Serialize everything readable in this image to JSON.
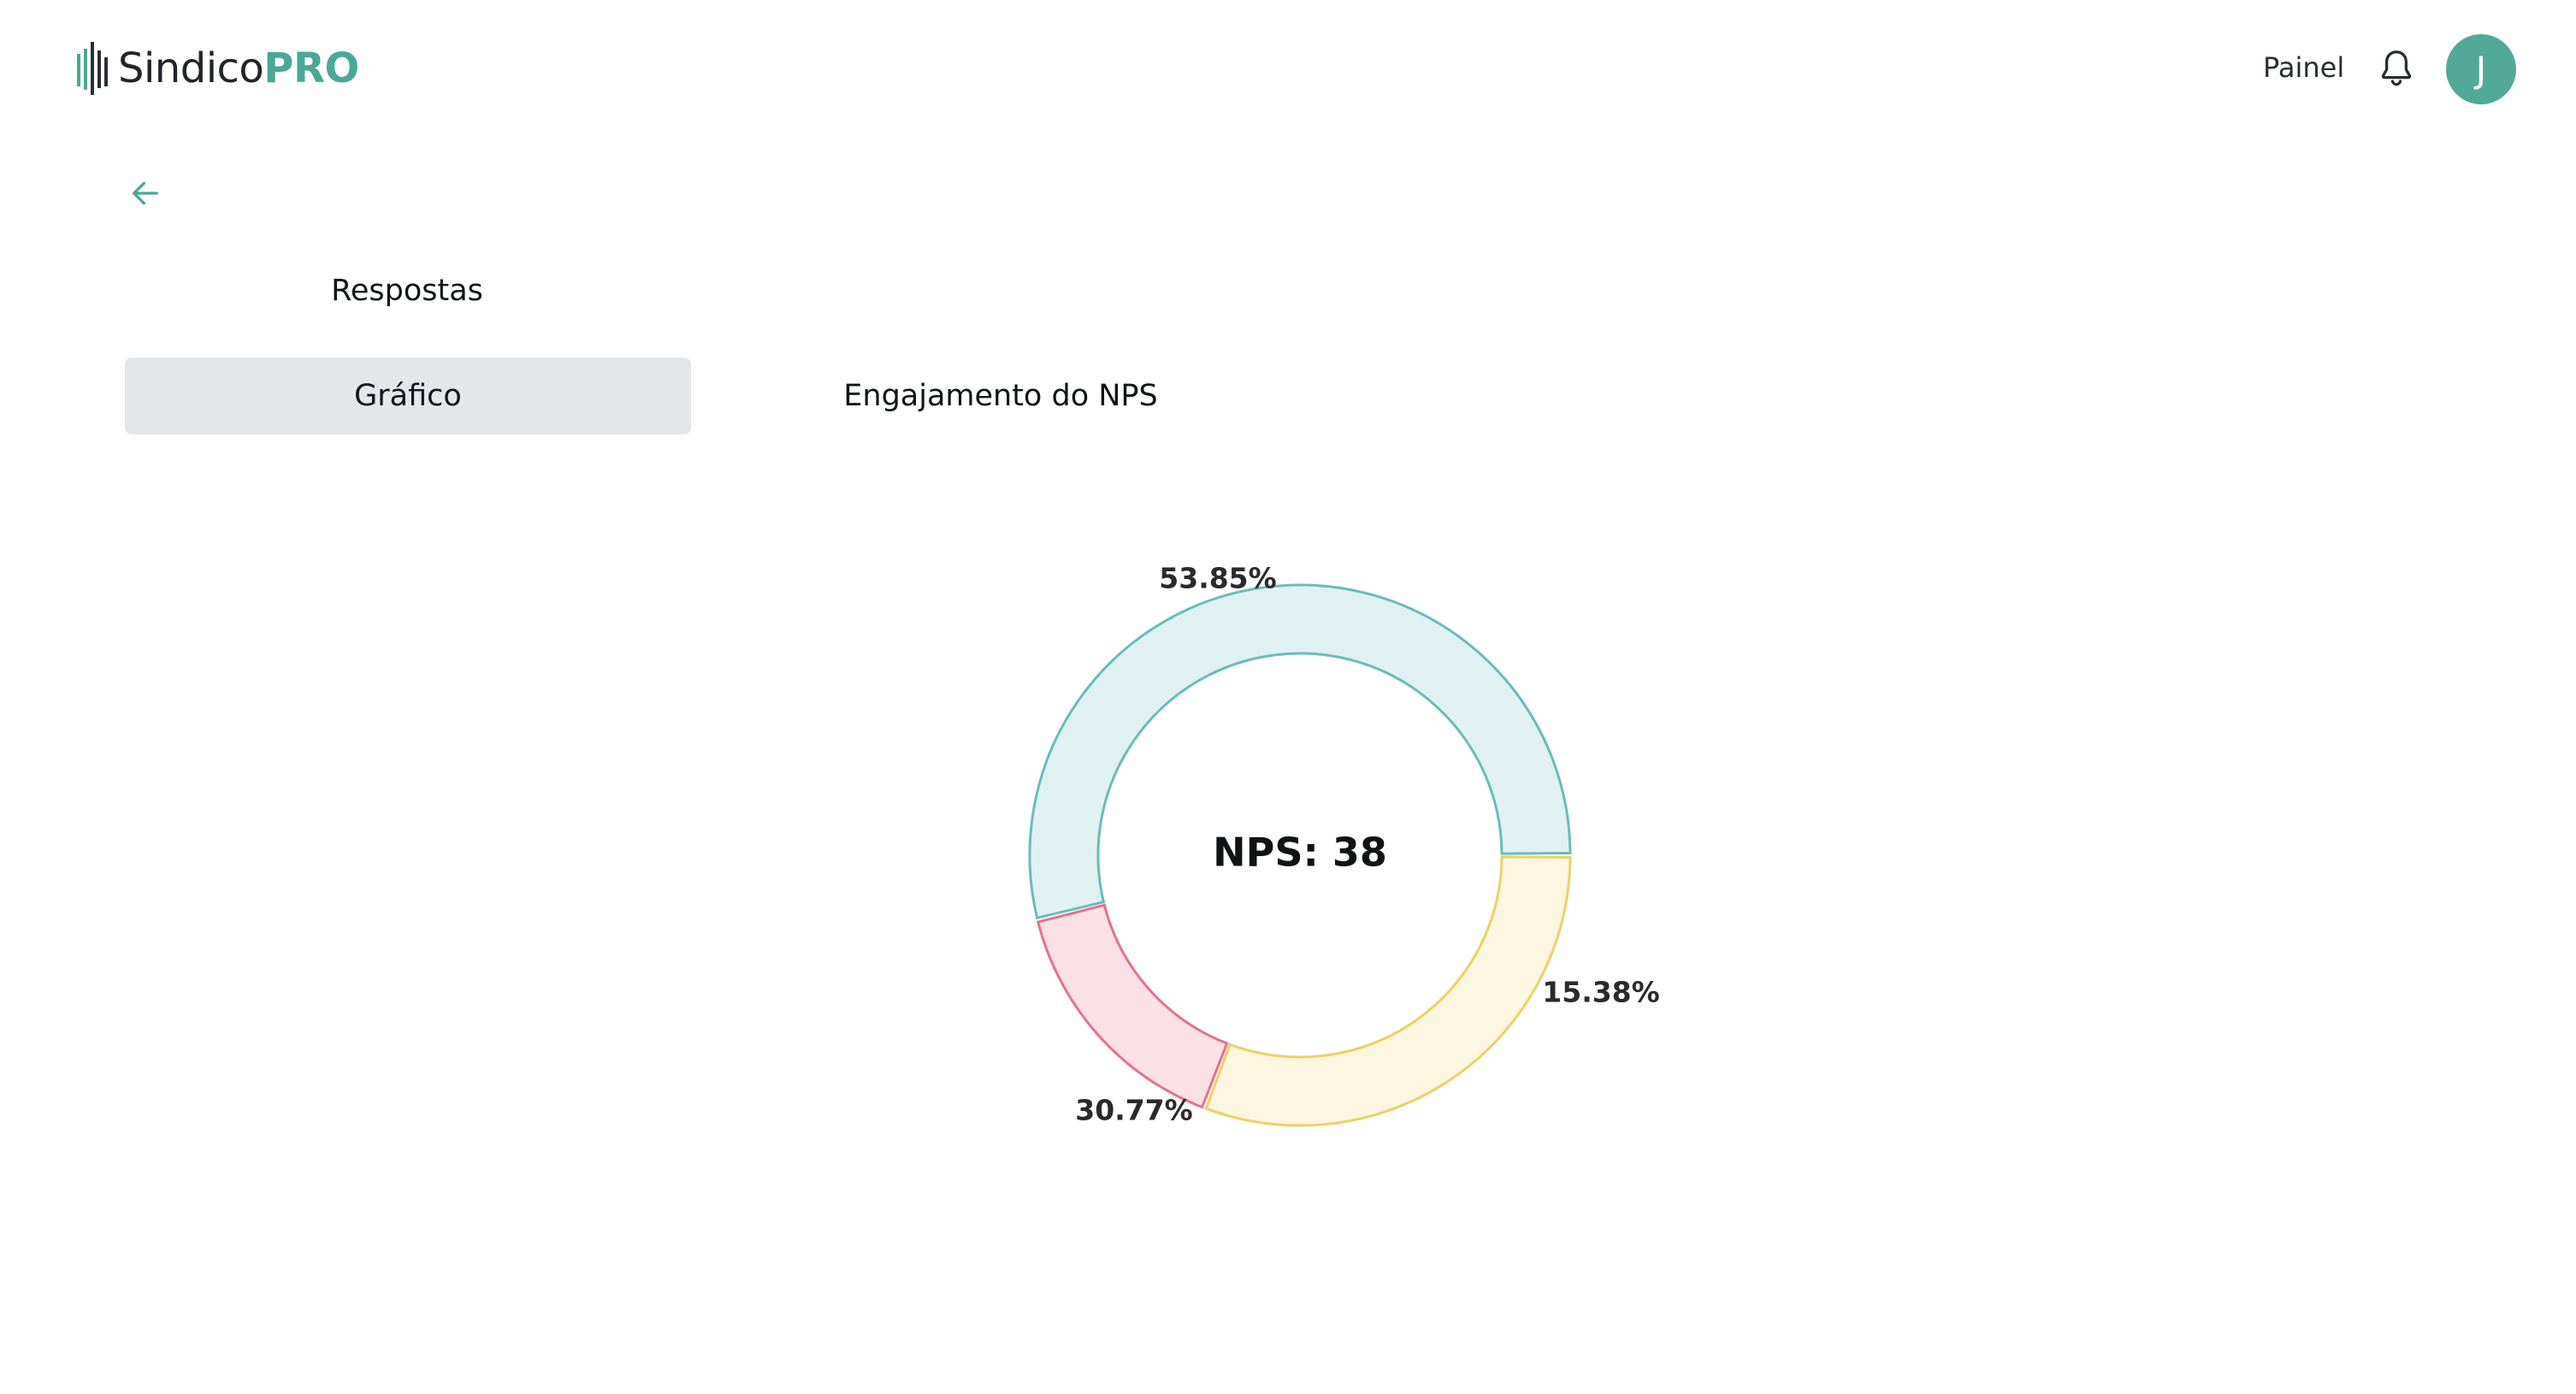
{
  "app": {
    "brand_part1": "Sindico",
    "brand_part2": "PRO",
    "brand_color": "#4aa896"
  },
  "header": {
    "nav_label": "Painel",
    "bell_icon": "bell-icon",
    "avatar_initial": "J",
    "avatar_color": "#52a998"
  },
  "back_icon": "arrow-left-icon",
  "section": {
    "title": "Respostas"
  },
  "tabs": [
    {
      "label": "Gráfico",
      "active": true
    },
    {
      "label": "Engajamento do NPS",
      "active": false
    }
  ],
  "chart_data": {
    "type": "pie",
    "center_label": "NPS: 38",
    "series": [
      {
        "value": 53.85,
        "label": "53.85%",
        "fill": "#e0f1f1",
        "stroke": "#69bcbc"
      },
      {
        "value": 15.38,
        "label": "15.38%",
        "fill": "#fbe1e6",
        "stroke": "#e8708a"
      },
      {
        "value": 30.77,
        "label": "30.77%",
        "fill": "#fdf6e0",
        "stroke": "#f0cf66"
      }
    ]
  }
}
